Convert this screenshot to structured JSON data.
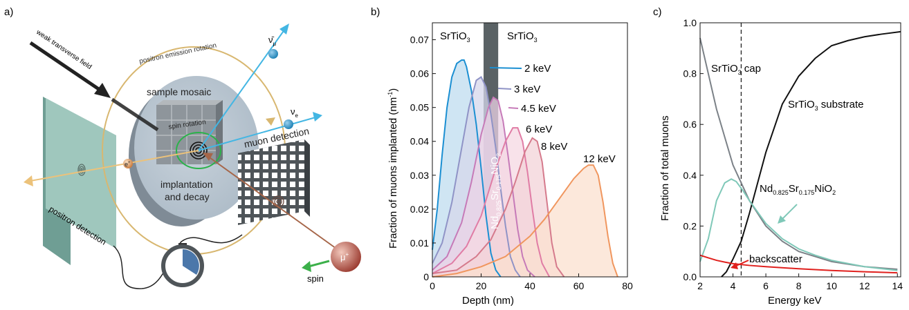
{
  "panels": {
    "a": {
      "letter": "a)",
      "labels": {
        "field": "weak transverse field",
        "rotation": "positron emission rotation",
        "sample": "sample mosaic",
        "spin_rotation": "spin rotation",
        "implant1": "implantation",
        "implant2": "and decay",
        "muon_det": "muon detection",
        "positron_det": "positron detection",
        "spin": "spin",
        "nu_bar": "ν̄",
        "nu_bar_sub": "μ",
        "nu_e": "ν",
        "nu_e_sub": "e",
        "electron": "e",
        "electron_sup": "+",
        "muon": "μ",
        "muon_sup": "+"
      }
    },
    "b": {
      "letter": "b)"
    },
    "c": {
      "letter": "c)"
    }
  },
  "chart_data": [
    {
      "type": "area",
      "panel": "b",
      "xlabel": "Depth (nm)",
      "ylabel": "Fraction of muons implanted (nm",
      "ylabel_sup": "-1",
      "ylabel_end": ")",
      "xlim": [
        0,
        80
      ],
      "ylim": [
        0,
        0.075
      ],
      "xticks": [
        0,
        20,
        40,
        60,
        80
      ],
      "yticks": [
        0,
        0.01,
        0.02,
        0.03,
        0.04,
        0.05,
        0.06,
        0.07
      ],
      "ytick_labels": [
        "0",
        "0.01",
        "0.02",
        "0.03",
        "0.04",
        "0.05",
        "0.06",
        "0.07"
      ],
      "layers": [
        {
          "label": "SrTiO",
          "sub": "3",
          "x": [
            0,
            21
          ]
        },
        {
          "label": "Nd",
          "sub1": "0.825",
          "mid": "Sr",
          "sub2": "0.175",
          "end": "NiO",
          "sub3": "2",
          "x": [
            21,
            27
          ],
          "color": "#5a6265"
        },
        {
          "label": "SrTiO",
          "sub": "3",
          "x": [
            27,
            80
          ]
        }
      ],
      "series": [
        {
          "name": "2 keV",
          "color": "#1b8fd2",
          "fill": "#bfdcef",
          "x": [
            0,
            2,
            4,
            6,
            8,
            10,
            12,
            13,
            14,
            16,
            18,
            20,
            22,
            24,
            26,
            28
          ],
          "y": [
            0.008,
            0.02,
            0.036,
            0.05,
            0.059,
            0.063,
            0.064,
            0.064,
            0.062,
            0.055,
            0.045,
            0.032,
            0.018,
            0.007,
            0.002,
            0
          ]
        },
        {
          "name": "3 keV",
          "color": "#8f93c6",
          "fill": "#d6d7eb",
          "x": [
            0,
            4,
            8,
            12,
            15,
            18,
            20,
            22,
            24,
            26,
            28,
            30,
            32,
            34,
            36
          ],
          "y": [
            0.004,
            0.01,
            0.022,
            0.038,
            0.05,
            0.058,
            0.059,
            0.056,
            0.048,
            0.038,
            0.026,
            0.015,
            0.006,
            0.002,
            0
          ]
        },
        {
          "name": "4.5 keV",
          "color": "#c67ab8",
          "fill": "#ecd3e6",
          "x": [
            0,
            6,
            12,
            16,
            20,
            23,
            25,
            27,
            29,
            31,
            33,
            35,
            37,
            39,
            42
          ],
          "y": [
            0.002,
            0.006,
            0.016,
            0.028,
            0.042,
            0.05,
            0.053,
            0.052,
            0.046,
            0.036,
            0.025,
            0.014,
            0.006,
            0.002,
            0
          ]
        },
        {
          "name": "6 keV",
          "color": "#e07ca5",
          "fill": "#f5d8e3",
          "x": [
            0,
            8,
            14,
            20,
            26,
            30,
            33,
            35,
            37,
            39,
            41,
            43,
            45,
            48
          ],
          "y": [
            0.001,
            0.004,
            0.009,
            0.018,
            0.032,
            0.04,
            0.044,
            0.044,
            0.04,
            0.031,
            0.02,
            0.01,
            0.004,
            0
          ]
        },
        {
          "name": "8 keV",
          "color": "#d57a8c",
          "fill": "#f3d3d8",
          "x": [
            0,
            10,
            18,
            24,
            30,
            34,
            38,
            41,
            43,
            45,
            47,
            49,
            51,
            54
          ],
          "y": [
            0.001,
            0.002,
            0.006,
            0.011,
            0.02,
            0.028,
            0.037,
            0.041,
            0.04,
            0.034,
            0.022,
            0.01,
            0.003,
            0
          ]
        },
        {
          "name": "12 keV",
          "color": "#f0965e",
          "fill": "#fbe0cf",
          "x": [
            0,
            10,
            20,
            30,
            40,
            46,
            50,
            54,
            58,
            62,
            64,
            66,
            68,
            70,
            72,
            74,
            76
          ],
          "y": [
            0,
            0.001,
            0.003,
            0.006,
            0.012,
            0.017,
            0.021,
            0.025,
            0.029,
            0.032,
            0.033,
            0.033,
            0.03,
            0.022,
            0.012,
            0.004,
            0
          ]
        }
      ]
    },
    {
      "type": "line",
      "panel": "c",
      "xlabel": "Energy keV",
      "ylabel": "Fraction of total muons",
      "xlim": [
        2,
        14.2
      ],
      "ylim": [
        0,
        1.0
      ],
      "xticks": [
        2,
        4,
        6,
        8,
        10,
        12,
        14
      ],
      "yticks": [
        0,
        0.2,
        0.4,
        0.6,
        0.8,
        1.0
      ],
      "ytick_labels": [
        "0.0",
        "0.2",
        "0.4",
        "0.6",
        "0.8",
        "1.0"
      ],
      "vline": 4.5,
      "series": [
        {
          "name": "SrTiO",
          "sub": "3",
          "suffix": " cap",
          "color": "#7b8187",
          "x": [
            2,
            2.5,
            3,
            3.5,
            4,
            4.5,
            5,
            6,
            7,
            8,
            9,
            10,
            12,
            14
          ],
          "y": [
            0.94,
            0.8,
            0.66,
            0.55,
            0.44,
            0.37,
            0.3,
            0.2,
            0.14,
            0.1,
            0.08,
            0.06,
            0.04,
            0.03
          ]
        },
        {
          "name": "SrTiO",
          "sub": "3",
          "suffix": " substrate",
          "color": "#111111",
          "x": [
            3.3,
            3.6,
            4,
            4.5,
            5,
            5.5,
            6,
            7,
            8,
            9,
            10,
            11,
            12,
            13,
            14.2
          ],
          "y": [
            0,
            0.02,
            0.07,
            0.14,
            0.25,
            0.37,
            0.49,
            0.68,
            0.79,
            0.86,
            0.91,
            0.93,
            0.945,
            0.955,
            0.965
          ]
        },
        {
          "name": "Nd",
          "sub": "0.825",
          "mid": "Sr",
          "sub2": "0.175",
          "end": "NiO",
          "sub3": "2",
          "color": "#7fc8b8",
          "x": [
            2,
            2.5,
            3,
            3.5,
            3.9,
            4.2,
            4.6,
            5,
            6,
            7,
            8,
            9,
            10,
            12,
            14
          ],
          "y": [
            0.06,
            0.15,
            0.3,
            0.37,
            0.385,
            0.375,
            0.34,
            0.3,
            0.21,
            0.15,
            0.11,
            0.085,
            0.065,
            0.04,
            0.025
          ]
        },
        {
          "name": "backscatter",
          "color": "#e0201d",
          "x": [
            2,
            2.5,
            3,
            3.5,
            4,
            5,
            6,
            8,
            10,
            12,
            14
          ],
          "y": [
            0.085,
            0.075,
            0.065,
            0.058,
            0.052,
            0.045,
            0.04,
            0.032,
            0.025,
            0.02,
            0.016
          ]
        }
      ]
    }
  ]
}
